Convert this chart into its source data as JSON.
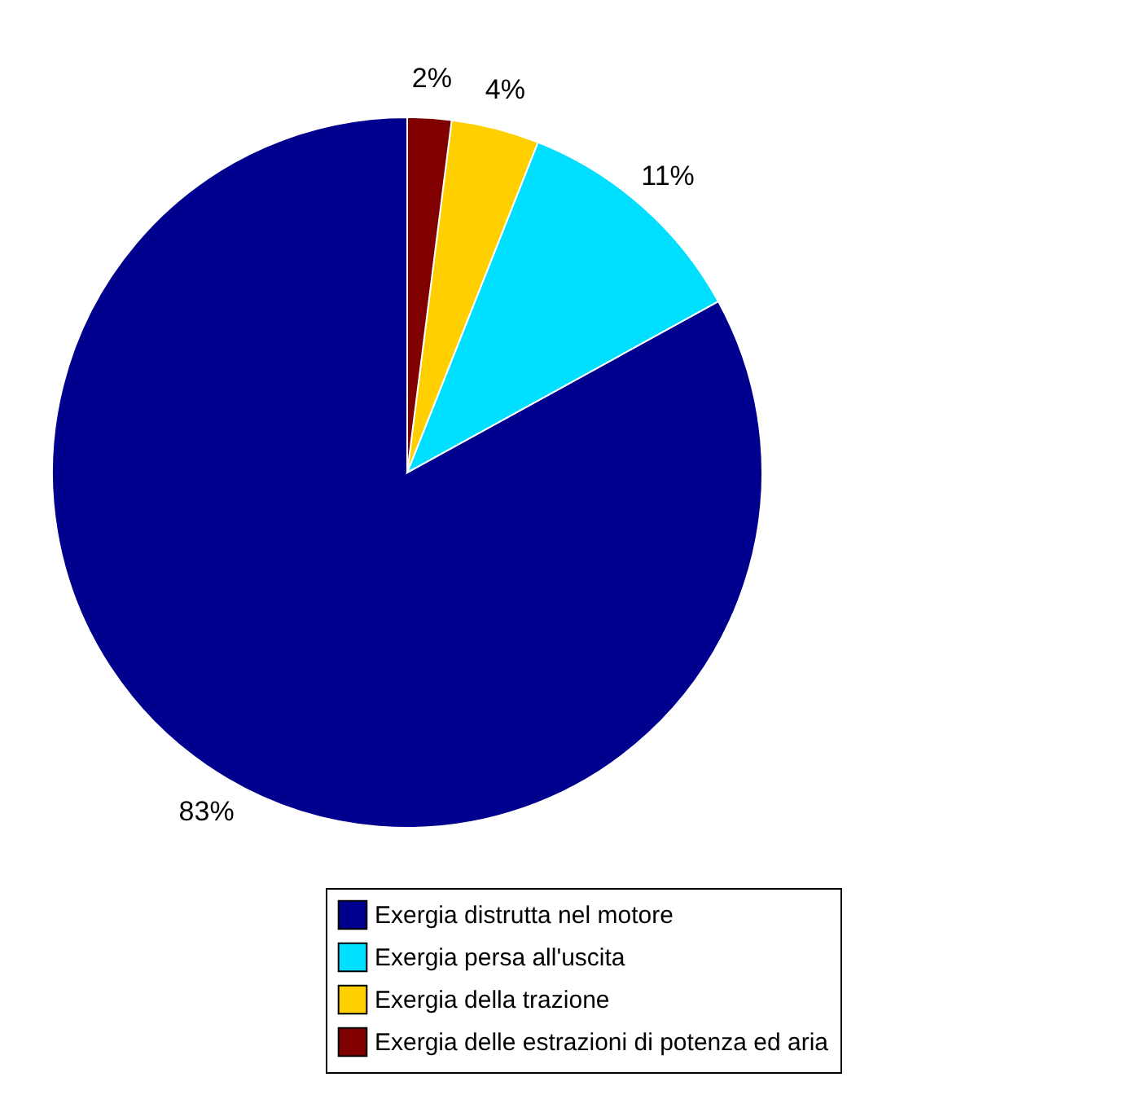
{
  "chart_data": {
    "type": "pie",
    "categories": [
      "Exergia distrutta nel motore",
      "Exergia persa all'uscita",
      "Exergia della trazione",
      "Exergia delle estrazioni di potenza ed aria"
    ],
    "values": [
      83,
      11,
      4,
      2
    ],
    "value_labels": [
      "83%",
      "11%",
      "4%",
      "2%"
    ],
    "colors": [
      "#00008f",
      "#00dfff",
      "#ffcf00",
      "#800000"
    ],
    "legend": "bottom right"
  }
}
